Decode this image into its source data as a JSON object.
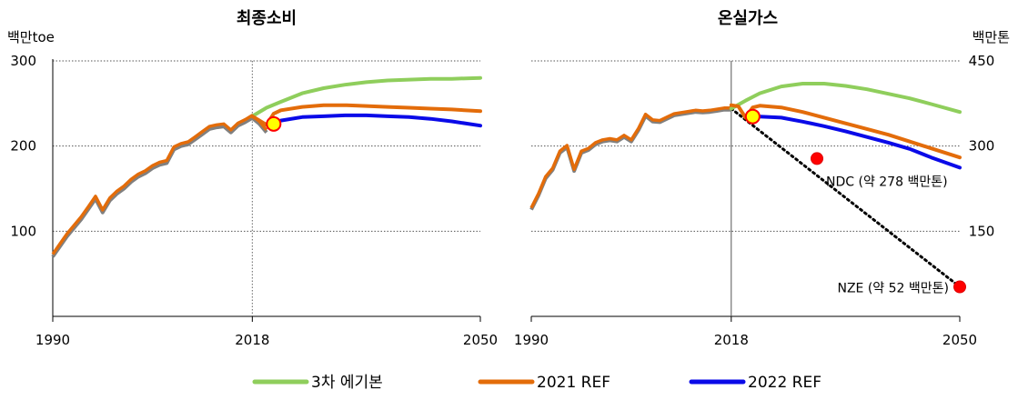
{
  "colors": {
    "plan3": "#8fce5c",
    "ref2021": "#e36c0a",
    "ref2022": "#0a0ae8",
    "history": "#808080",
    "marker_red": "#ff0000",
    "marker_yellow": "#ffff00",
    "dotted_path": "#000000"
  },
  "legend": [
    "3차 에기본",
    "2021 REF",
    "2022 REF"
  ],
  "chart_data": [
    {
      "type": "line",
      "title": "최종소비",
      "ylabel": "백만toe",
      "x_ticks": [
        "1990",
        "2018",
        "2050"
      ],
      "xlim": [
        1990,
        2050
      ],
      "y_ticks": [
        "100",
        "200",
        "300"
      ],
      "ylim": [
        0,
        300
      ],
      "vline_x": 2018,
      "legend_position": "bottom",
      "grid": "horizontal dotted",
      "history": {
        "x": [
          1990,
          1991,
          1992,
          1993,
          1994,
          1995,
          1996,
          1997,
          1998,
          1999,
          2000,
          2001,
          2002,
          2003,
          2004,
          2005,
          2006,
          2007,
          2008,
          2009,
          2010,
          2011,
          2012,
          2013,
          2014,
          2015,
          2016,
          2017,
          2018,
          2019,
          2020
        ],
        "y": [
          72,
          84,
          96,
          106,
          116,
          128,
          140,
          124,
          138,
          146,
          152,
          160,
          166,
          170,
          176,
          180,
          182,
          198,
          202,
          204,
          210,
          216,
          222,
          224,
          225,
          218,
          226,
          230,
          235,
          228,
          218
        ]
      },
      "series": [
        {
          "name": "3차 에기본",
          "x": [
            2018,
            2020,
            2022,
            2025,
            2028,
            2031,
            2034,
            2037,
            2040,
            2043,
            2046,
            2050
          ],
          "y": [
            235,
            245,
            252,
            262,
            268,
            272,
            275,
            277,
            278,
            279,
            279,
            280
          ]
        },
        {
          "name": "2021 REF",
          "x": [
            2018,
            2019,
            2020,
            2021,
            2022,
            2025,
            2028,
            2031,
            2034,
            2037,
            2040,
            2043,
            2046,
            2050
          ],
          "y": [
            235,
            230,
            225,
            238,
            242,
            246,
            248,
            248,
            247,
            246,
            245,
            244,
            243,
            241
          ]
        },
        {
          "name": "2022 REF",
          "x": [
            2021,
            2022,
            2025,
            2028,
            2031,
            2034,
            2037,
            2040,
            2043,
            2046,
            2050
          ],
          "y": [
            226,
            230,
            234,
            235,
            236,
            236,
            235,
            234,
            232,
            229,
            224
          ]
        }
      ],
      "markers": [
        {
          "x": 2021,
          "y": 226,
          "color": "yellow"
        }
      ]
    },
    {
      "type": "line",
      "title": "온실가스",
      "ylabel": "백만톤",
      "x_ticks": [
        "1990",
        "2018",
        "2050"
      ],
      "xlim": [
        1990,
        2050
      ],
      "y_ticks": [
        "150",
        "300",
        "450"
      ],
      "ylim": [
        0,
        450
      ],
      "vline_x": 2018,
      "grid": "horizontal dotted",
      "history": {
        "x": [
          1990,
          1991,
          1992,
          1993,
          1994,
          1995,
          1996,
          1997,
          1998,
          1999,
          2000,
          2001,
          2002,
          2003,
          2004,
          2005,
          2006,
          2007,
          2008,
          2009,
          2010,
          2011,
          2012,
          2013,
          2014,
          2015,
          2016,
          2017,
          2018
        ],
        "y": [
          190,
          215,
          245,
          260,
          290,
          300,
          258,
          290,
          295,
          305,
          310,
          312,
          310,
          318,
          310,
          330,
          355,
          345,
          344,
          350,
          356,
          358,
          360,
          362,
          361,
          362,
          364,
          366,
          366
        ]
      },
      "series": [
        {
          "name": "3차 에기본",
          "x": [
            2018,
            2020,
            2022,
            2025,
            2028,
            2031,
            2034,
            2037,
            2040,
            2043,
            2046,
            2050
          ],
          "y": [
            366,
            380,
            393,
            405,
            410,
            410,
            406,
            400,
            392,
            384,
            374,
            360
          ]
        },
        {
          "name": "2021 REF",
          "x": [
            2018,
            2019,
            2020,
            2021,
            2022,
            2025,
            2028,
            2031,
            2034,
            2037,
            2040,
            2043,
            2046,
            2050
          ],
          "y": [
            372,
            370,
            350,
            368,
            371,
            368,
            360,
            350,
            340,
            330,
            320,
            308,
            296,
            280
          ]
        },
        {
          "name": "2022 REF",
          "x": [
            2021,
            2022,
            2025,
            2028,
            2031,
            2034,
            2037,
            2040,
            2043,
            2046,
            2050
          ],
          "y": [
            352,
            352,
            350,
            343,
            335,
            326,
            316,
            306,
            295,
            280,
            262
          ]
        }
      ],
      "path_points": {
        "x": [
          2018,
          2050
        ],
        "y": [
          366,
          52
        ]
      },
      "markers": [
        {
          "x": 2021,
          "y": 352,
          "color": "yellow"
        },
        {
          "x": 2030,
          "y": 278,
          "color": "red",
          "label": "NDC (약 278 백만톤)"
        },
        {
          "x": 2050,
          "y": 52,
          "color": "red",
          "label": "NZE (약 52 백만톤)"
        }
      ]
    }
  ]
}
